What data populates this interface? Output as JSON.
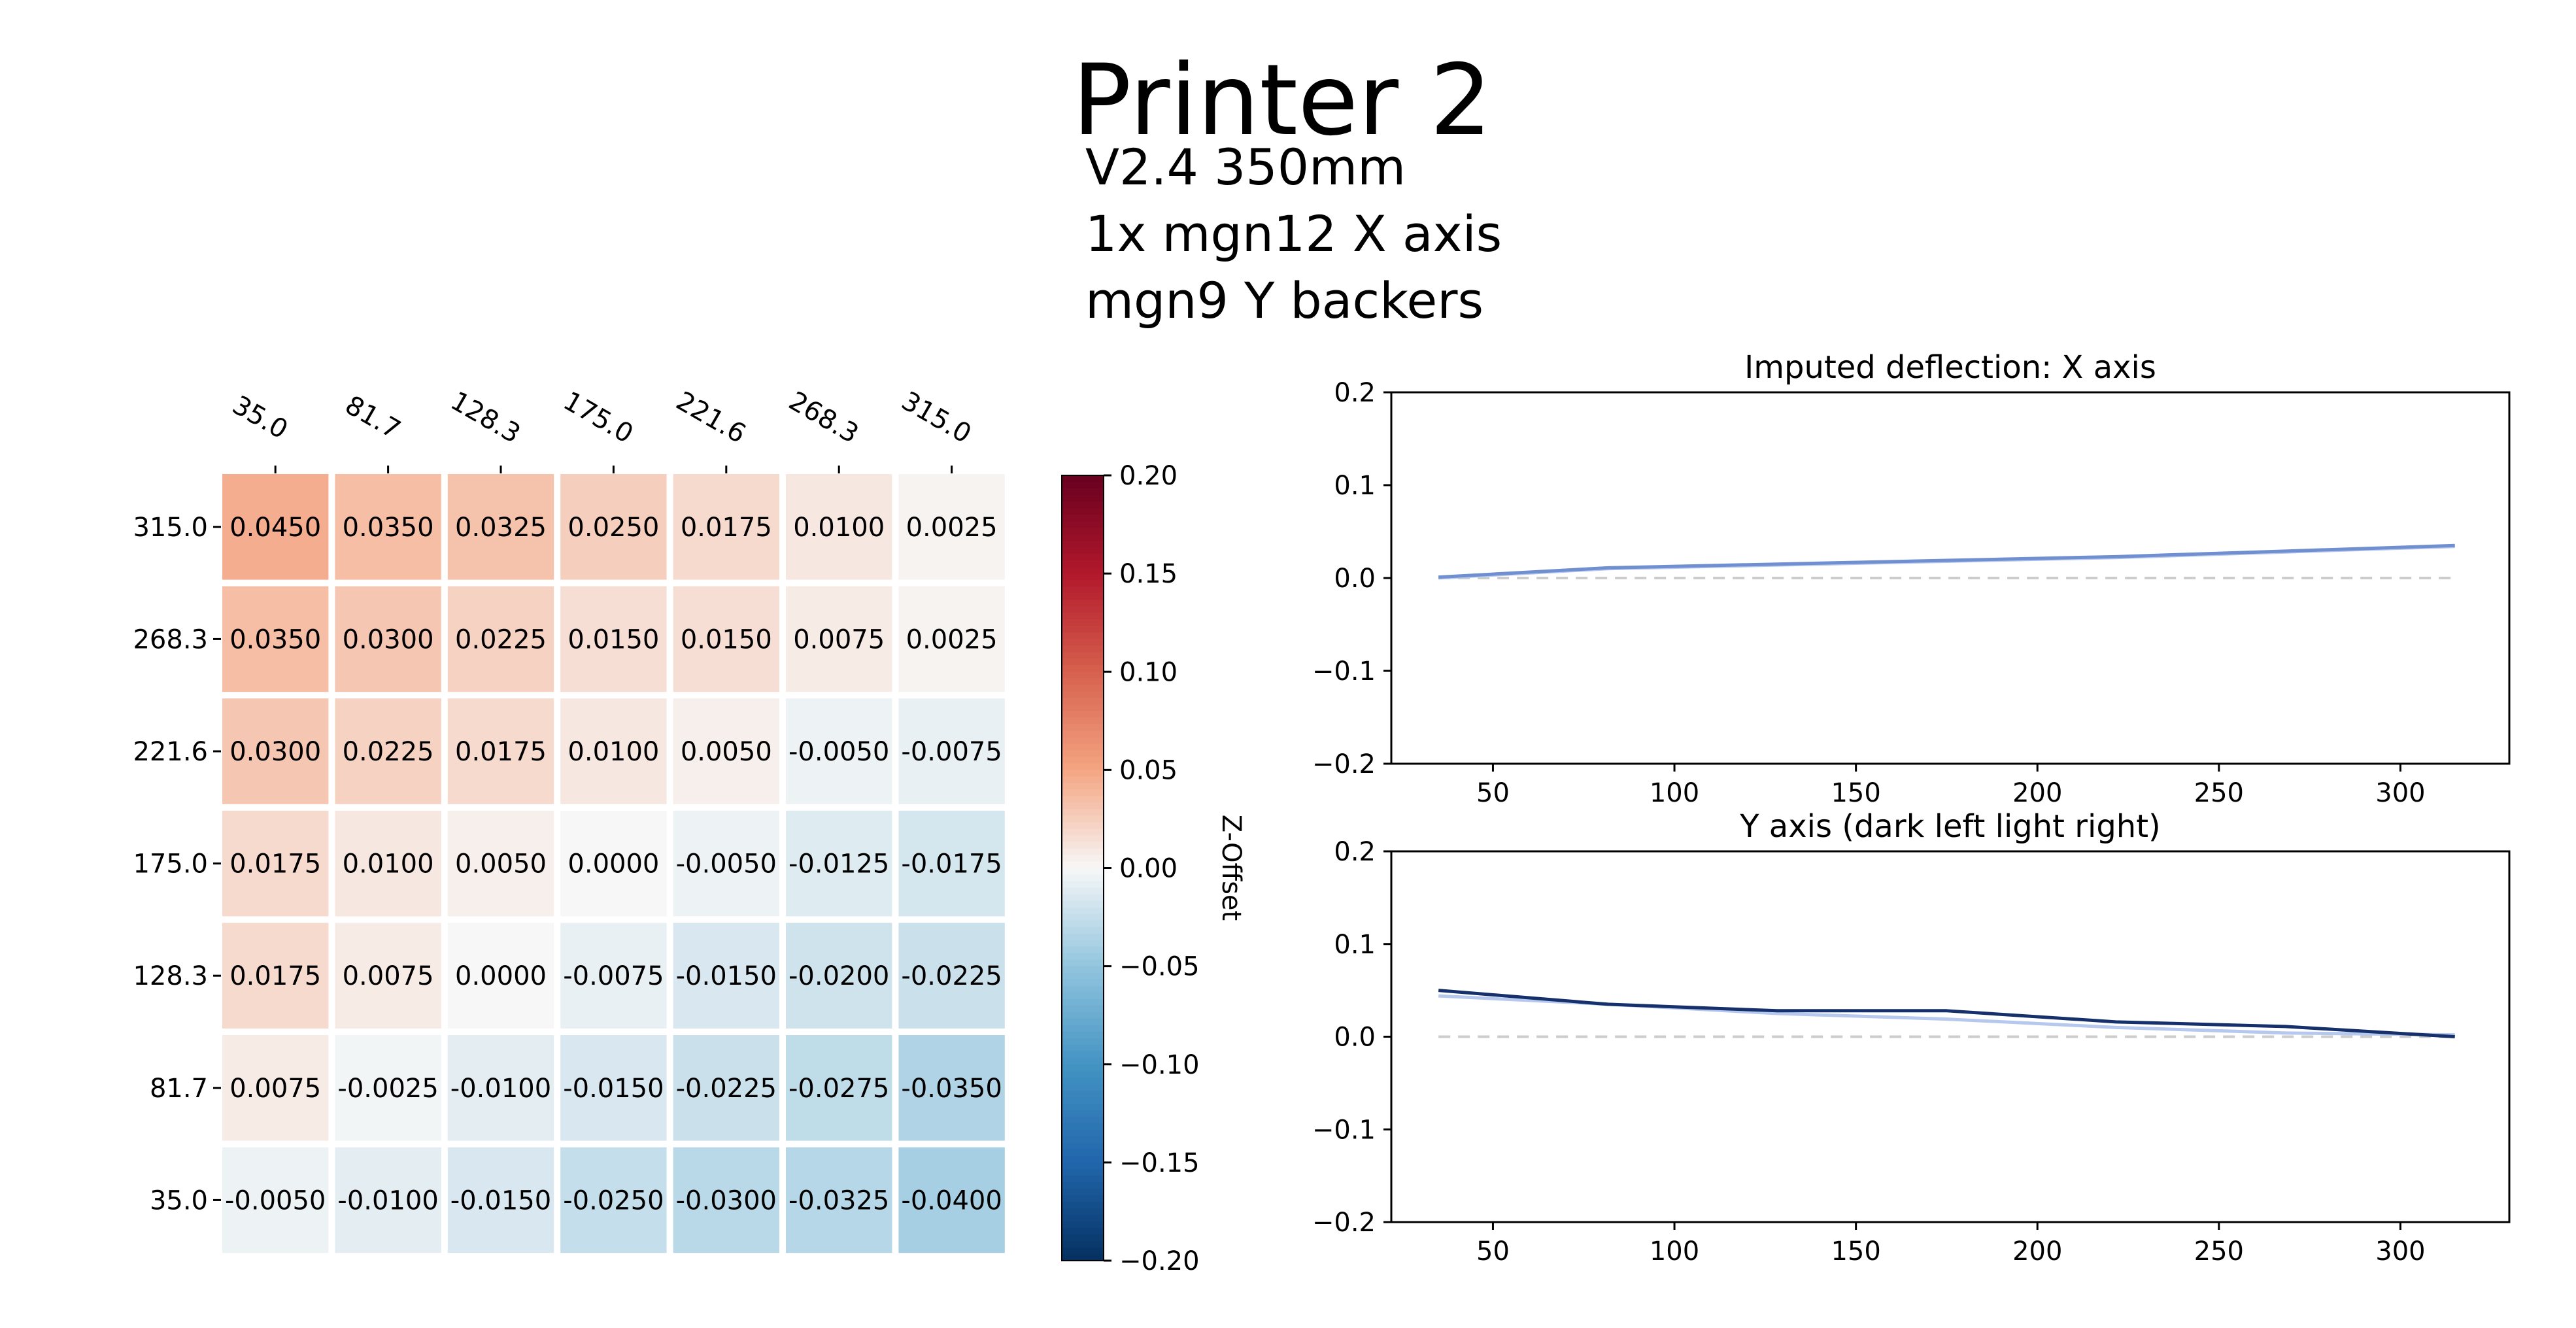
{
  "header": {
    "title": "Printer 2",
    "subtitle_lines": [
      "V2.4 350mm",
      "1x mgn12 X axis",
      "mgn9 Y backers"
    ]
  },
  "chart_data": [
    {
      "type": "heatmap",
      "x_tick_labels": [
        "35.0",
        "81.7",
        "128.3",
        "175.0",
        "221.6",
        "268.3",
        "315.0"
      ],
      "y_tick_labels": [
        "315.0",
        "268.3",
        "221.6",
        "175.0",
        "128.3",
        "81.7",
        "35.0"
      ],
      "values": [
        [
          "0.0450",
          "0.0350",
          "0.0325",
          "0.0250",
          "0.0175",
          "0.0100",
          "0.0025"
        ],
        [
          "0.0350",
          "0.0300",
          "0.0225",
          "0.0150",
          "0.0150",
          "0.0075",
          "0.0025"
        ],
        [
          "0.0300",
          "0.0225",
          "0.0175",
          "0.0100",
          "0.0050",
          "-0.0050",
          "-0.0075"
        ],
        [
          "0.0175",
          "0.0100",
          "0.0050",
          "0.0000",
          "-0.0050",
          "-0.0125",
          "-0.0175"
        ],
        [
          "0.0175",
          "0.0075",
          "0.0000",
          "-0.0075",
          "-0.0150",
          "-0.0200",
          "-0.0225"
        ],
        [
          "0.0075",
          "-0.0025",
          "-0.0100",
          "-0.0150",
          "-0.0225",
          "-0.0275",
          "-0.0350"
        ],
        [
          "-0.0050",
          "-0.0100",
          "-0.0150",
          "-0.0250",
          "-0.0300",
          "-0.0325",
          "-0.0400"
        ]
      ],
      "colorbar": {
        "label": "Z-Offset",
        "range": [
          -0.2,
          0.2
        ],
        "ticks": [
          "0.20",
          "0.15",
          "0.10",
          "0.05",
          "0.00",
          "−0.05",
          "−0.10",
          "−0.15",
          "−0.20"
        ],
        "colormap": "RdBu_r"
      }
    },
    {
      "type": "line",
      "title": "Imputed deflection: X axis",
      "xlim": [
        22,
        330
      ],
      "ylim": [
        -0.2,
        0.2
      ],
      "x_ticks": [
        "50",
        "100",
        "150",
        "200",
        "250",
        "300"
      ],
      "y_ticks": [
        "0.2",
        "0.1",
        "0.0",
        "−0.1",
        "−0.2"
      ],
      "series": [
        {
          "color": "#6f8fd0",
          "x": [
            35,
            81.7,
            128.3,
            175,
            221.6,
            268.3,
            315
          ],
          "y": [
            0.001,
            0.011,
            0.015,
            0.019,
            0.023,
            0.029,
            0.035
          ]
        },
        {
          "color": "#b6c8ee",
          "x": [
            35,
            81.7,
            128.3,
            175,
            221.6,
            268.3,
            315
          ],
          "y": [
            0.0,
            0.01,
            0.014,
            0.018,
            0.022,
            0.028,
            0.034
          ]
        }
      ],
      "zero_line": {
        "y": 0.0,
        "x": [
          35,
          315
        ],
        "style": "dashed",
        "color": "#cccccc"
      }
    },
    {
      "type": "line",
      "title": "Y axis (dark left light right)",
      "xlim": [
        22,
        330
      ],
      "ylim": [
        -0.2,
        0.2
      ],
      "x_ticks": [
        "50",
        "100",
        "150",
        "200",
        "250",
        "300"
      ],
      "y_ticks": [
        "0.2",
        "0.1",
        "0.0",
        "−0.1",
        "−0.2"
      ],
      "series": [
        {
          "color": "#15306b",
          "x": [
            35,
            81.7,
            128.3,
            175,
            221.6,
            268.3,
            315
          ],
          "y": [
            0.05,
            0.035,
            0.028,
            0.028,
            0.016,
            0.011,
            0.0
          ]
        },
        {
          "color": "#b6c8ee",
          "x": [
            35,
            81.7,
            128.3,
            175,
            221.6,
            268.3,
            315
          ],
          "y": [
            0.044,
            0.035,
            0.025,
            0.019,
            0.01,
            0.004,
            0.002
          ]
        }
      ],
      "zero_line": {
        "y": 0.0,
        "x": [
          35,
          315
        ],
        "style": "dashed",
        "color": "#cccccc"
      }
    }
  ]
}
